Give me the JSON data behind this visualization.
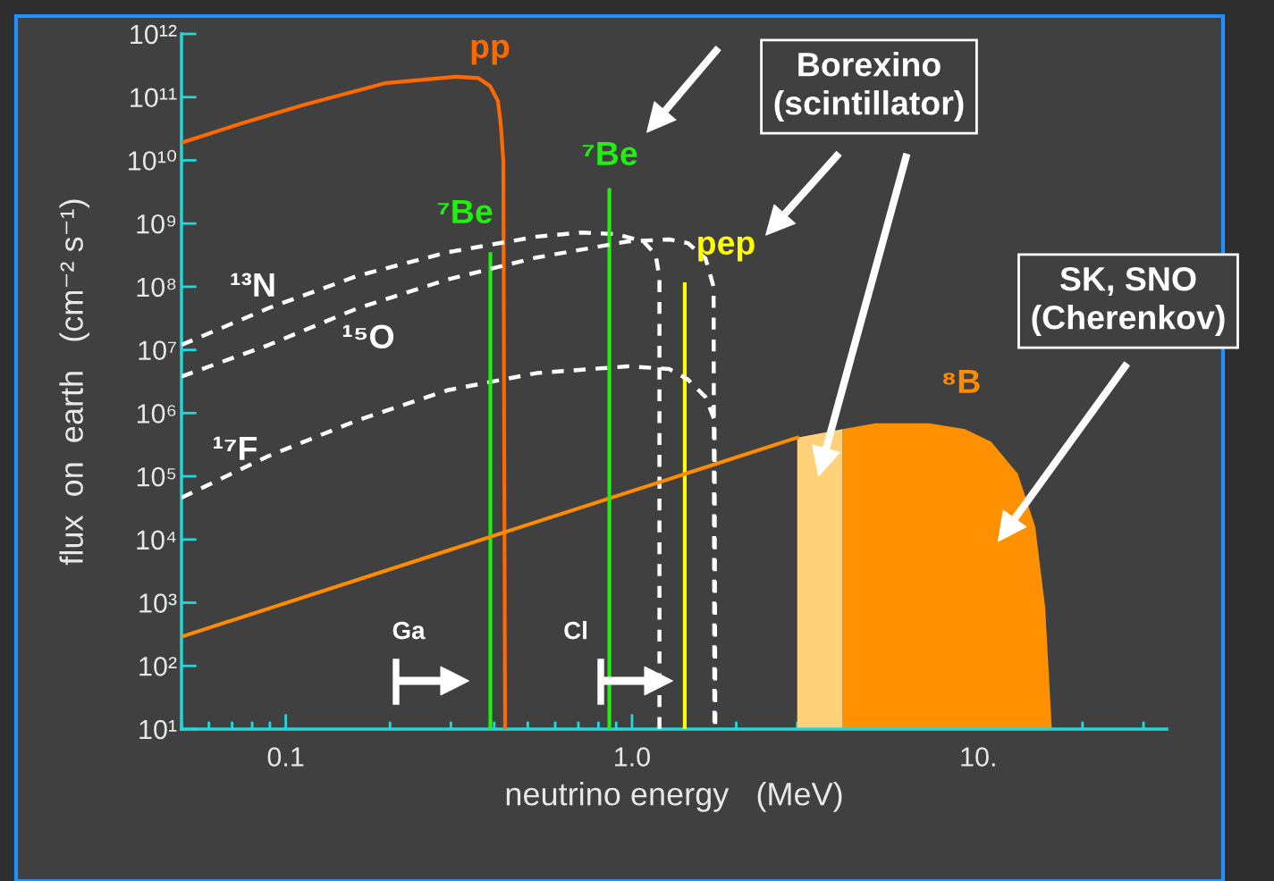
{
  "chart_data": {
    "type": "line",
    "xlabel": "neutrino energy   (MeV)",
    "ylabel": "flux  on  earth   (cm⁻² s⁻¹)",
    "log": "xy",
    "xlim": [
      0.05,
      35
    ],
    "ylim": [
      10,
      1000000000000.0
    ],
    "xticks": [
      {
        "value": 0.1,
        "label": "0.1"
      },
      {
        "value": 1,
        "label": "1.0"
      },
      {
        "value": 10,
        "label": "10."
      }
    ],
    "yticks": [
      {
        "value": 10,
        "label": "10¹"
      },
      {
        "value": 100,
        "label": "10²"
      },
      {
        "value": 1000,
        "label": "10³"
      },
      {
        "value": 10000,
        "label": "10⁴"
      },
      {
        "value": 100000,
        "label": "10⁵"
      },
      {
        "value": 1000000,
        "label": "10⁶"
      },
      {
        "value": 10000000,
        "label": "10⁷"
      },
      {
        "value": 100000000,
        "label": "10⁸"
      },
      {
        "value": 1000000000,
        "label": "10⁹"
      },
      {
        "value": 10000000000,
        "label": "10¹⁰"
      },
      {
        "value": 100000000000,
        "label": "10¹¹"
      },
      {
        "value": 1000000000000,
        "label": "10¹²"
      }
    ],
    "grid": false,
    "legend": false,
    "marker": "none",
    "series": [
      {
        "type": "line",
        "name": "pp",
        "color": "#ff6a00",
        "x": [
          0.05,
          0.075,
          0.113,
          0.193,
          0.31,
          0.36,
          0.389,
          0.41,
          0.418,
          0.425,
          0.43
        ],
        "values": [
          19000000000.0,
          39000000000.0,
          76000000000.0,
          166000000000.0,
          210000000000.0,
          200000000000.0,
          150000000000.0,
          87000000000.0,
          36000000000.0,
          9800000000.0,
          10
        ]
      },
      {
        "type": "line",
        "name": "⁷Be",
        "color": "#22ee11",
        "x": [
          0.39,
          0.39
        ],
        "values": [
          10,
          330000000.0
        ]
      },
      {
        "type": "line",
        "name": "⁷Be",
        "color": "#22ee11",
        "x": [
          0.86,
          0.86
        ],
        "values": [
          10,
          3400000000.0
        ]
      },
      {
        "type": "line",
        "name": "pep",
        "color": "#ffff00",
        "x": [
          1.42,
          1.42
        ],
        "values": [
          10,
          110000000.0
        ]
      },
      {
        "type": "line",
        "name": "¹³N",
        "color": "#ffffff",
        "line_style": "dashed",
        "x": [
          0.05,
          0.0893,
          0.162,
          0.293,
          0.53,
          0.713,
          0.9,
          1.08,
          1.17,
          1.2,
          1.2
        ],
        "values": [
          12000000.0,
          46000000.0,
          150000000.0,
          350000000.0,
          620000000.0,
          720000000.0,
          680000000.0,
          520000000.0,
          320000000.0,
          140000000.0,
          10
        ]
      },
      {
        "type": "line",
        "name": "¹⁵O",
        "color": "#ffffff",
        "line_style": "dashed",
        "x": [
          0.05,
          0.0893,
          0.162,
          0.293,
          0.53,
          0.97,
          1.28,
          1.45,
          1.63,
          1.72,
          1.73
        ],
        "values": [
          3800000.0,
          12000000.0,
          46000000.0,
          130000000.0,
          290000000.0,
          520000000.0,
          560000000.0,
          490000000.0,
          280000000.0,
          100000000.0,
          10
        ]
      },
      {
        "type": "line",
        "name": "¹⁷F",
        "color": "#ffffff",
        "line_style": "dashed",
        "x": [
          0.05,
          0.0893,
          0.162,
          0.293,
          0.53,
          0.97,
          1.28,
          1.45,
          1.63,
          1.73,
          1.74
        ],
        "values": [
          46000.0,
          210000.0,
          780000.0,
          2300000.0,
          4300000.0,
          5500000.0,
          5000000.0,
          3400000.0,
          1800000.0,
          780000.0,
          10
        ]
      },
      {
        "type": "line",
        "name": "⁸B",
        "color": "#ff8c00",
        "x": [
          0.05,
          3.0
        ],
        "values": [
          290,
          410000.0
        ]
      },
      {
        "type": "area",
        "color": "#ffd27a",
        "x": [
          3.0,
          4.06
        ],
        "values": [
          410000.0,
          560000.0
        ]
      },
      {
        "type": "area",
        "color": "#ff9000",
        "x": [
          4.06,
          5.04,
          7.2,
          9.15,
          10.9,
          13.0,
          14.6,
          15.6,
          16.3
        ],
        "values": [
          560000.0,
          690000.0,
          690000.0,
          560000.0,
          350000.0,
          110000.0,
          16000.0,
          830,
          10
        ]
      }
    ],
    "annotations": [
      "Borexino\n(scintillator)",
      "SK, SNO\n(Cherenkov)",
      "Ga",
      "Cl"
    ]
  }
}
